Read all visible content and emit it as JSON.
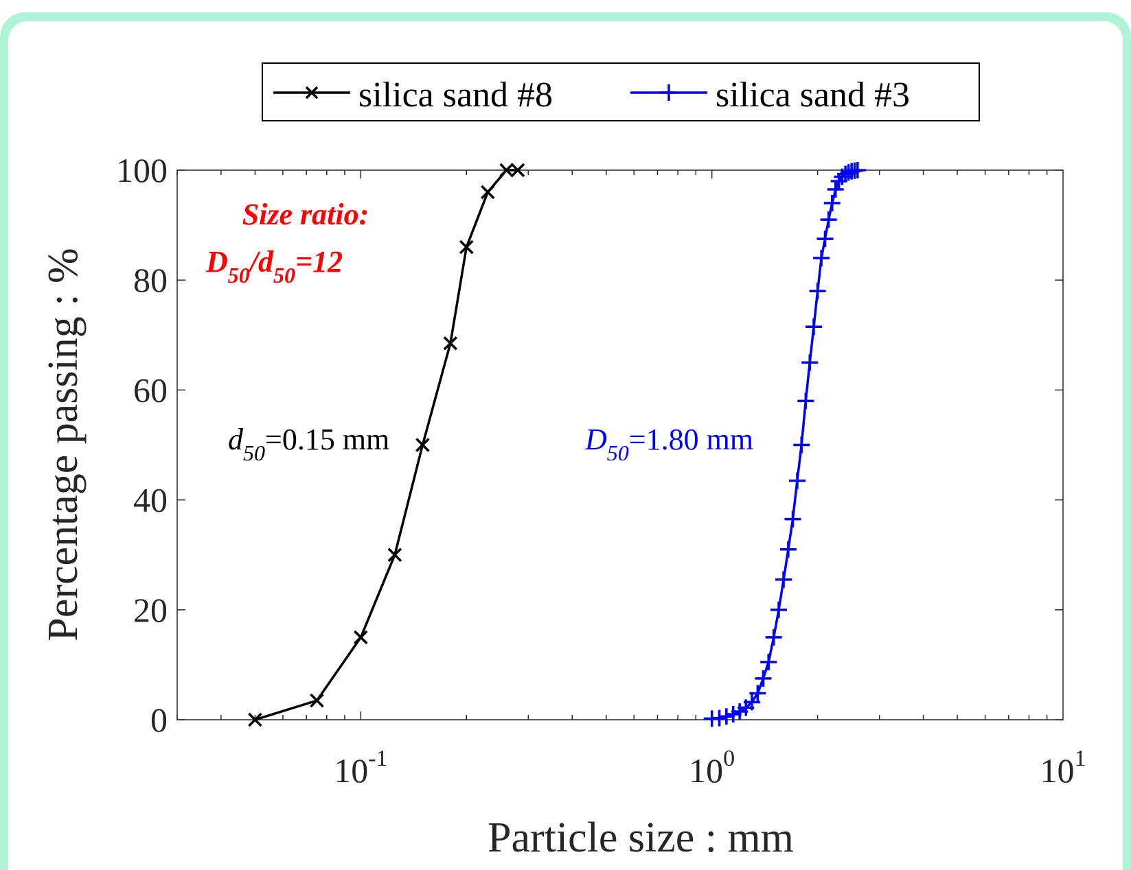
{
  "chart_data": {
    "type": "line",
    "xlabel": "Particle size : mm",
    "ylabel": "Percentage passing : %",
    "xscale": "log",
    "xlim": [
      0.03,
      10
    ],
    "ylim": [
      0,
      100
    ],
    "x_ticks": [
      {
        "value": 0.1,
        "base": "10",
        "exp": "-1"
      },
      {
        "value": 1,
        "base": "10",
        "exp": "0"
      },
      {
        "value": 10,
        "base": "10",
        "exp": "1"
      }
    ],
    "y_ticks": [
      "0",
      "20",
      "40",
      "60",
      "80",
      "100"
    ],
    "grid": false,
    "legend_position": "top-center",
    "series": [
      {
        "name": "silica sand #8",
        "color": "#000000",
        "marker": "x",
        "x": [
          0.05,
          0.075,
          0.1,
          0.125,
          0.15,
          0.18,
          0.2,
          0.23,
          0.26,
          0.28
        ],
        "y": [
          0,
          3.5,
          15,
          30,
          50,
          68.5,
          86,
          96,
          100,
          100
        ]
      },
      {
        "name": "silica sand #3",
        "color": "#0000ff",
        "marker": "+",
        "x": [
          1.0,
          1.05,
          1.1,
          1.15,
          1.2,
          1.25,
          1.3,
          1.35,
          1.4,
          1.45,
          1.5,
          1.55,
          1.6,
          1.65,
          1.7,
          1.75,
          1.8,
          1.85,
          1.9,
          1.95,
          2.0,
          2.05,
          2.1,
          2.15,
          2.2,
          2.25,
          2.3,
          2.35,
          2.4,
          2.45,
          2.5,
          2.55,
          2.6
        ],
        "y": [
          0.2,
          0.3,
          0.6,
          1.0,
          1.5,
          2.2,
          3.2,
          4.8,
          7.5,
          10.5,
          15,
          20,
          25.5,
          31,
          36.5,
          43.5,
          50,
          58,
          65,
          71.5,
          78,
          84,
          87.5,
          91,
          94,
          96.5,
          98,
          98.8,
          99.3,
          99.6,
          99.8,
          99.9,
          100
        ]
      }
    ],
    "annotations": {
      "size_ratio_line1": "Size ratio:",
      "size_ratio_D": "D",
      "size_ratio_sub1": "50",
      "size_ratio_slash_d": "/d",
      "size_ratio_sub2": "50",
      "size_ratio_value": "=12",
      "d50_symbol": "d",
      "d50_sub": "50",
      "d50_value": "=0.15 mm",
      "D50_symbol": "D",
      "D50_sub": "50",
      "D50_value": "=1.80 mm"
    },
    "annotation_colors": {
      "size_ratio": "#ff0000",
      "d50": "#000000",
      "D50": "#0000ff"
    }
  }
}
